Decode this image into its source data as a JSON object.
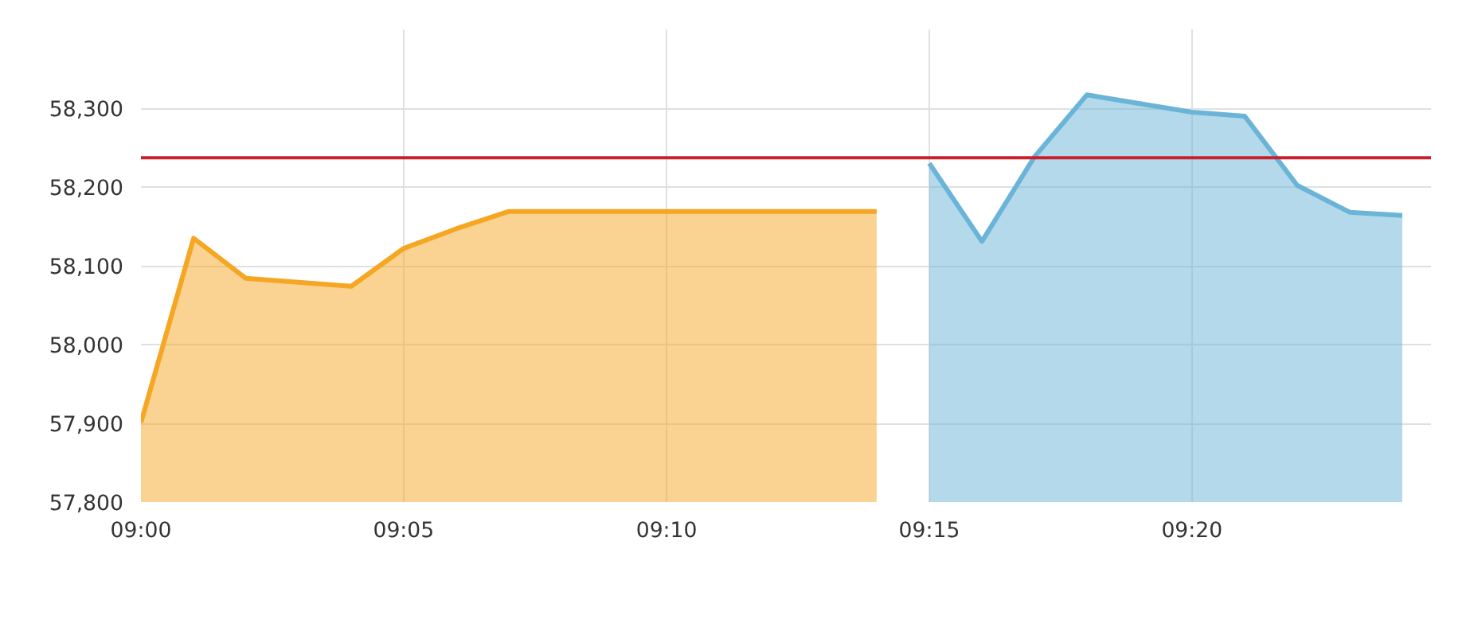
{
  "chart_data": {
    "type": "area",
    "xlim": [
      9.0,
      9.4091
    ],
    "ylim": [
      57800,
      58400
    ],
    "xticks": [
      {
        "value": 9.0,
        "label": "09:00"
      },
      {
        "value": 9.0833,
        "label": "09:05"
      },
      {
        "value": 9.1667,
        "label": "09:10"
      },
      {
        "value": 9.25,
        "label": "09:15"
      },
      {
        "value": 9.3333,
        "label": "09:20"
      }
    ],
    "yticks": [
      {
        "value": 57800,
        "label": "57,800"
      },
      {
        "value": 57900,
        "label": "57,900"
      },
      {
        "value": 58000,
        "label": "58,000"
      },
      {
        "value": 58100,
        "label": "58,100"
      },
      {
        "value": 58200,
        "label": "58,200"
      },
      {
        "value": 58300,
        "label": "58,300"
      }
    ],
    "grid": true,
    "series": [
      {
        "color": "#f5a623",
        "x": [
          9.0,
          9.0167,
          9.0333,
          9.0667,
          9.0833,
          9.1,
          9.1167,
          9.2333
        ],
        "values": [
          57901,
          58135,
          58084,
          58074,
          58122,
          58147,
          58169,
          58169
        ]
      },
      {
        "color": "#6ab4d8",
        "x": [
          9.25,
          9.2667,
          9.2833,
          9.3,
          9.3333,
          9.35,
          9.3667,
          9.3833,
          9.4
        ],
        "values": [
          58230,
          58131,
          58238,
          58317,
          58295,
          58290,
          58202,
          58168,
          58164
        ]
      }
    ],
    "ref_lines": [
      {
        "axis": "y",
        "value": 58237,
        "color": "#c8202f"
      }
    ]
  }
}
